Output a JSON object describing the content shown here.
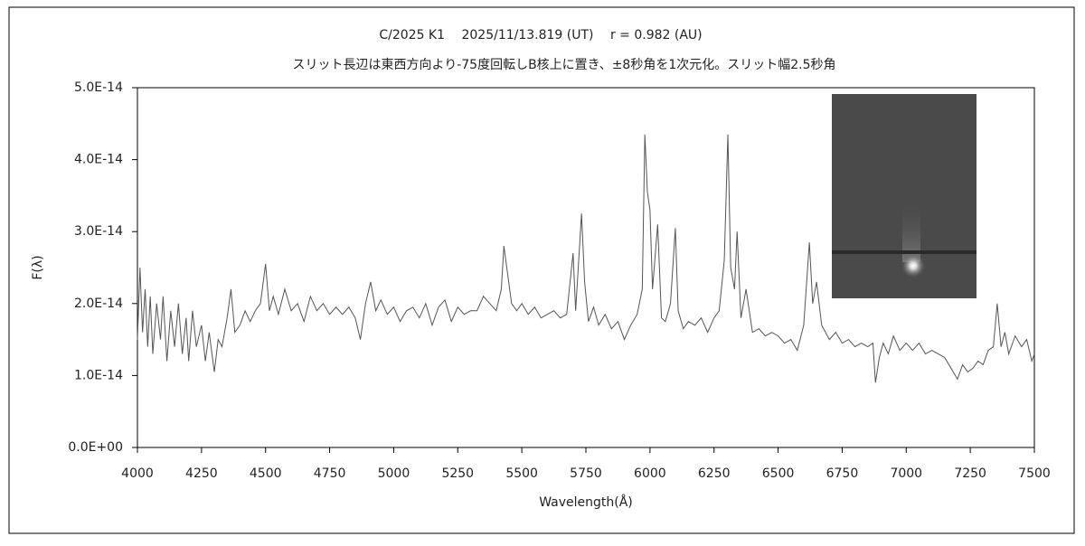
{
  "chart_data": {
    "type": "line",
    "title": "C/2025 K1　 2025/11/13.819 (UT)　 r = 0.982 (AU)",
    "subtitle": "スリット長辺は東西方向より-75度回転しB核上に置き、±8秒角を1次元化。スリット幅2.5秒角",
    "x_label": "Wavelength(Å)",
    "y_label": "F(λ)",
    "xlim": [
      4000,
      7500
    ],
    "xticks": [
      4000,
      4250,
      4500,
      4750,
      5000,
      5250,
      5500,
      5750,
      6000,
      6250,
      6500,
      6750,
      7000,
      7250,
      7500
    ],
    "ylim": [
      0,
      5e-14
    ],
    "yticks": [
      {
        "value": 0,
        "label": "0.0E+00"
      },
      {
        "value": 1e-14,
        "label": "1.0E-14"
      },
      {
        "value": 2e-14,
        "label": "2.0E-14"
      },
      {
        "value": 3e-14,
        "label": "3.0E-14"
      },
      {
        "value": 4e-14,
        "label": "4.0E-14"
      },
      {
        "value": 5e-14,
        "label": "5.0E-14"
      }
    ],
    "grid": false,
    "x": [
      4000,
      4010,
      4020,
      4030,
      4040,
      4050,
      4060,
      4075,
      4090,
      4100,
      4115,
      4130,
      4145,
      4160,
      4175,
      4190,
      4200,
      4215,
      4230,
      4250,
      4265,
      4280,
      4300,
      4315,
      4330,
      4350,
      4365,
      4380,
      4400,
      4420,
      4440,
      4460,
      4480,
      4500,
      4515,
      4530,
      4550,
      4575,
      4600,
      4625,
      4650,
      4675,
      4700,
      4725,
      4750,
      4775,
      4800,
      4825,
      4850,
      4870,
      4890,
      4910,
      4930,
      4950,
      4975,
      5000,
      5025,
      5050,
      5075,
      5100,
      5125,
      5150,
      5175,
      5200,
      5225,
      5250,
      5275,
      5300,
      5325,
      5350,
      5375,
      5400,
      5420,
      5430,
      5445,
      5460,
      5480,
      5500,
      5525,
      5550,
      5575,
      5600,
      5625,
      5650,
      5675,
      5700,
      5710,
      5733,
      5745,
      5760,
      5780,
      5800,
      5825,
      5850,
      5875,
      5900,
      5925,
      5950,
      5970,
      5980,
      5990,
      6000,
      6010,
      6030,
      6045,
      6060,
      6080,
      6099,
      6110,
      6130,
      6150,
      6175,
      6200,
      6225,
      6250,
      6270,
      6290,
      6304,
      6315,
      6330,
      6340,
      6355,
      6375,
      6400,
      6425,
      6450,
      6475,
      6500,
      6525,
      6550,
      6575,
      6600,
      6622,
      6635,
      6650,
      6670,
      6700,
      6725,
      6750,
      6775,
      6800,
      6825,
      6850,
      6870,
      6880,
      6895,
      6910,
      6930,
      6950,
      6975,
      7000,
      7025,
      7050,
      7075,
      7100,
      7125,
      7150,
      7175,
      7200,
      7220,
      7240,
      7260,
      7280,
      7300,
      7320,
      7340,
      7355,
      7370,
      7385,
      7400,
      7425,
      7450,
      7470,
      7490,
      7500
    ],
    "series": [
      {
        "color": "#555555",
        "values": [
          1.5e-14,
          2.5e-14,
          1.6e-14,
          2.2e-14,
          1.4e-14,
          2.1e-14,
          1.3e-14,
          2e-14,
          1.5e-14,
          2.1e-14,
          1.2e-14,
          1.9e-14,
          1.4e-14,
          2e-14,
          1.3e-14,
          1.8e-14,
          1.2e-14,
          1.9e-14,
          1.4e-14,
          1.7e-14,
          1.2e-14,
          1.6e-14,
          1.05e-14,
          1.5e-14,
          1.4e-14,
          1.8e-14,
          2.2e-14,
          1.6e-14,
          1.7e-14,
          1.9e-14,
          1.75e-14,
          1.9e-14,
          2e-14,
          2.55e-14,
          1.9e-14,
          2.1e-14,
          1.85e-14,
          2.2e-14,
          1.9e-14,
          2e-14,
          1.75e-14,
          2.1e-14,
          1.9e-14,
          2e-14,
          1.85e-14,
          1.95e-14,
          1.85e-14,
          1.95e-14,
          1.8e-14,
          1.5e-14,
          2e-14,
          2.3e-14,
          1.9e-14,
          2.05e-14,
          1.85e-14,
          1.95e-14,
          1.75e-14,
          1.9e-14,
          1.95e-14,
          1.8e-14,
          2e-14,
          1.7e-14,
          1.95e-14,
          2.05e-14,
          1.75e-14,
          1.95e-14,
          1.85e-14,
          1.9e-14,
          1.9e-14,
          2.1e-14,
          2e-14,
          1.9e-14,
          2.2e-14,
          2.8e-14,
          2.4e-14,
          2e-14,
          1.9e-14,
          2e-14,
          1.85e-14,
          1.95e-14,
          1.8e-14,
          1.85e-14,
          1.9e-14,
          1.8e-14,
          1.85e-14,
          2.7e-14,
          1.9e-14,
          3.25e-14,
          2.3e-14,
          1.75e-14,
          1.95e-14,
          1.7e-14,
          1.85e-14,
          1.65e-14,
          1.75e-14,
          1.5e-14,
          1.7e-14,
          1.85e-14,
          2.2e-14,
          4.35e-14,
          3.55e-14,
          3.3e-14,
          2.2e-14,
          3.1e-14,
          1.8e-14,
          1.75e-14,
          2e-14,
          3.05e-14,
          1.9e-14,
          1.65e-14,
          1.75e-14,
          1.7e-14,
          1.8e-14,
          1.6e-14,
          1.8e-14,
          1.9e-14,
          2.6e-14,
          4.35e-14,
          2.5e-14,
          2.2e-14,
          3e-14,
          1.8e-14,
          2.2e-14,
          1.6e-14,
          1.65e-14,
          1.55e-14,
          1.6e-14,
          1.55e-14,
          1.45e-14,
          1.5e-14,
          1.35e-14,
          1.7e-14,
          2.85e-14,
          2e-14,
          2.3e-14,
          1.7e-14,
          1.5e-14,
          1.6e-14,
          1.45e-14,
          1.5e-14,
          1.4e-14,
          1.45e-14,
          1.4e-14,
          1.45e-14,
          9e-15,
          1.25e-14,
          1.45e-14,
          1.3e-14,
          1.55e-14,
          1.35e-14,
          1.45e-14,
          1.35e-14,
          1.45e-14,
          1.3e-14,
          1.35e-14,
          1.3e-14,
          1.25e-14,
          1.1e-14,
          9.5e-15,
          1.15e-14,
          1.05e-14,
          1.1e-14,
          1.2e-14,
          1.15e-14,
          1.35e-14,
          1.4e-14,
          2e-14,
          1.4e-14,
          1.6e-14,
          1.3e-14,
          1.55e-14,
          1.4e-14,
          1.5e-14,
          1.2e-14,
          1.3e-14
        ]
      }
    ]
  }
}
